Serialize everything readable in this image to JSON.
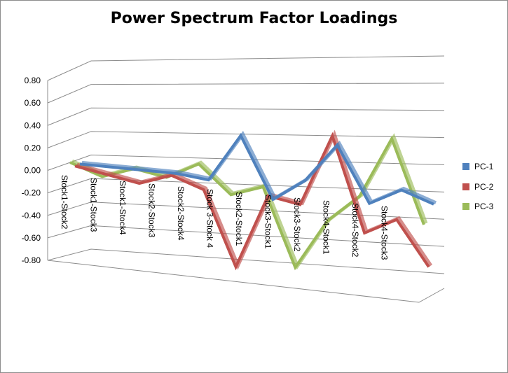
{
  "chart_data": {
    "type": "line",
    "title": "Power Spectrum Factor Loadings",
    "xlabel": "",
    "ylabel": "",
    "categories": [
      "Stock1-Stock2",
      "Stock1-Stock3",
      "Stock1-Stock4",
      "Stock2-Stock3",
      "Stock2-Stock4",
      "Stock 3-Stock 4",
      "Stock2-Stock1",
      "Stock3-Stock1",
      "Stock3-Stock2",
      "Stock4-Stock1",
      "Stock4-Stock2",
      "Stock4-Stock3"
    ],
    "yticks": [
      "0.80",
      "0.60",
      "0.40",
      "0.20",
      "0.00",
      "-0.20",
      "-0.40",
      "-0.60",
      "-0.80"
    ],
    "ylim": [
      -0.8,
      0.8
    ],
    "legend_position": "right",
    "grid": true,
    "series": [
      {
        "name": "PC-1",
        "color": "#4f81bd",
        "values": [
          0.0,
          0.0,
          0.0,
          0.0,
          -0.03,
          0.4,
          -0.15,
          0.05,
          0.4,
          -0.1,
          0.05,
          -0.05
        ]
      },
      {
        "name": "PC-2",
        "color": "#c0504d",
        "values": [
          0.0,
          -0.05,
          -0.1,
          0.0,
          -0.1,
          -0.77,
          -0.1,
          -0.15,
          0.5,
          -0.35,
          -0.2,
          -0.6
        ]
      },
      {
        "name": "PC-3",
        "color": "#9bbb59",
        "values": [
          0.05,
          -0.05,
          0.05,
          0.0,
          0.15,
          -0.1,
          0.0,
          -0.7,
          -0.25,
          0.0,
          0.55,
          -0.2
        ]
      }
    ]
  }
}
